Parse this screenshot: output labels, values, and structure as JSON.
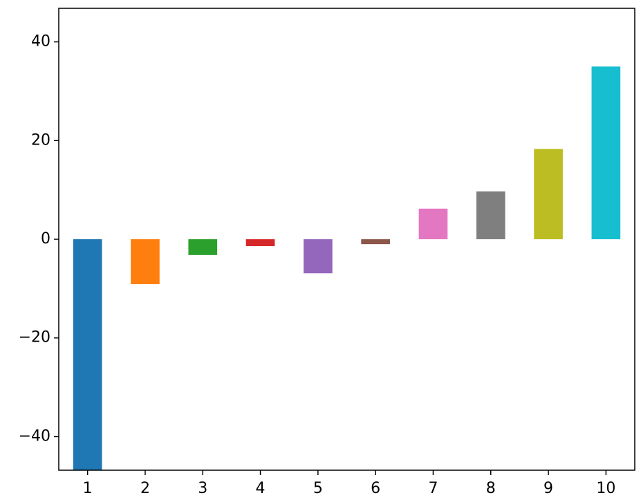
{
  "chart_data": {
    "type": "bar",
    "categories": [
      "1",
      "2",
      "3",
      "4",
      "5",
      "6",
      "7",
      "8",
      "9",
      "10"
    ],
    "values": [
      -47,
      -9.1,
      -3.2,
      -1.4,
      -6.9,
      -1.0,
      6.2,
      9.7,
      18.3,
      35.0
    ],
    "colors": [
      "#1f77b4",
      "#ff7f0e",
      "#2ca02c",
      "#d62728",
      "#9467bd",
      "#8c564b",
      "#e377c2",
      "#7f7f7f",
      "#bcbd22",
      "#17becf"
    ],
    "ylim": [
      -46.8,
      46.8
    ],
    "yticks": [
      {
        "value": -40,
        "label": "−40"
      },
      {
        "value": -20,
        "label": "−20"
      },
      0,
      20,
      40
    ],
    "grid": false
  }
}
